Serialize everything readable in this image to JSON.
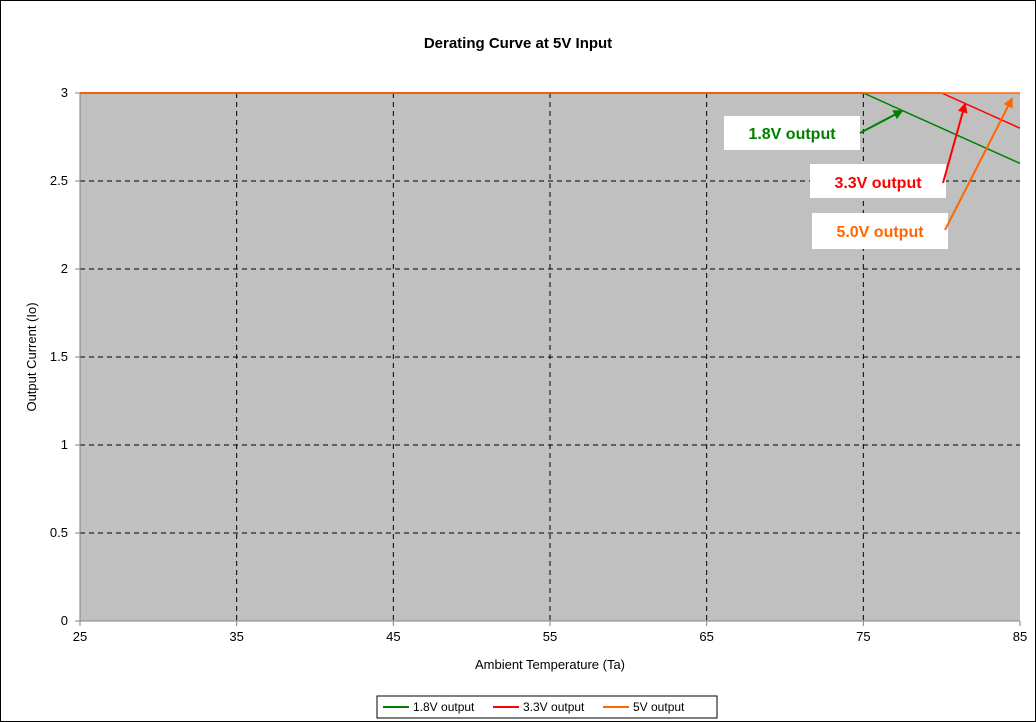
{
  "chart_data": {
    "type": "line",
    "title": "Derating Curve at 5V Input",
    "xlabel": "Ambient Temperature (Ta)",
    "ylabel": "Output Current (Io)",
    "xlim": [
      25,
      85
    ],
    "ylim": [
      0,
      3
    ],
    "x_ticks": [
      "25",
      "35",
      "45",
      "55",
      "65",
      "75",
      "85"
    ],
    "y_ticks": [
      "0",
      "0.5",
      "1",
      "1.5",
      "2",
      "2.5",
      "3"
    ],
    "grid": true,
    "plot_background": "#c0c0c0",
    "legend_position": "bottom",
    "series": [
      {
        "name": "1.8V output",
        "color": "#008000",
        "x": [
          25,
          75,
          85
        ],
        "y": [
          3,
          3,
          2.6
        ]
      },
      {
        "name": "3.3V output",
        "color": "#ff0000",
        "x": [
          25,
          80,
          85
        ],
        "y": [
          3,
          3,
          2.8
        ]
      },
      {
        "name": "5V output",
        "color": "#ff6600",
        "x": [
          25,
          85
        ],
        "y": [
          3,
          3
        ]
      }
    ],
    "annotations": [
      {
        "text": "1.8V output",
        "color": "#008000",
        "arrow_to": [
          77.5,
          2.9
        ]
      },
      {
        "text": "3.3V output",
        "color": "#ff0000",
        "arrow_to": [
          81.5,
          2.94
        ]
      },
      {
        "text": "5.0V output",
        "color": "#ff6600",
        "arrow_to": [
          84.5,
          2.97
        ]
      }
    ]
  }
}
